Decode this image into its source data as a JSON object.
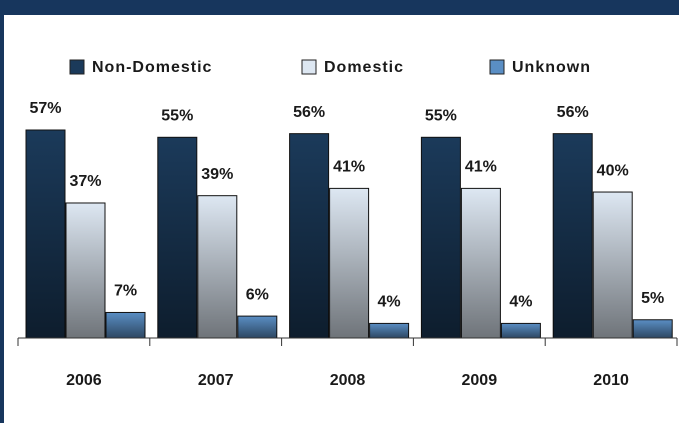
{
  "chart_data": {
    "type": "bar",
    "categories": [
      "2006",
      "2007",
      "2008",
      "2009",
      "2010"
    ],
    "series": [
      {
        "name": "Non-Domestic",
        "color": "#1b3a5a",
        "values": [
          57,
          55,
          56,
          55,
          56
        ],
        "value_labels": [
          "57%",
          "55%",
          "56%",
          "55%",
          "56%"
        ]
      },
      {
        "name": "Domestic",
        "color": "#dde7f2",
        "values": [
          37,
          39,
          41,
          41,
          40
        ],
        "value_labels": [
          "37%",
          "39%",
          "41%",
          "41%",
          "40%"
        ]
      },
      {
        "name": "Unknown",
        "color": "#5a8ec4",
        "values": [
          7,
          6,
          4,
          4,
          5
        ],
        "value_labels": [
          "7%",
          "6%",
          "4%",
          "4%",
          "5%"
        ]
      }
    ]
  }
}
